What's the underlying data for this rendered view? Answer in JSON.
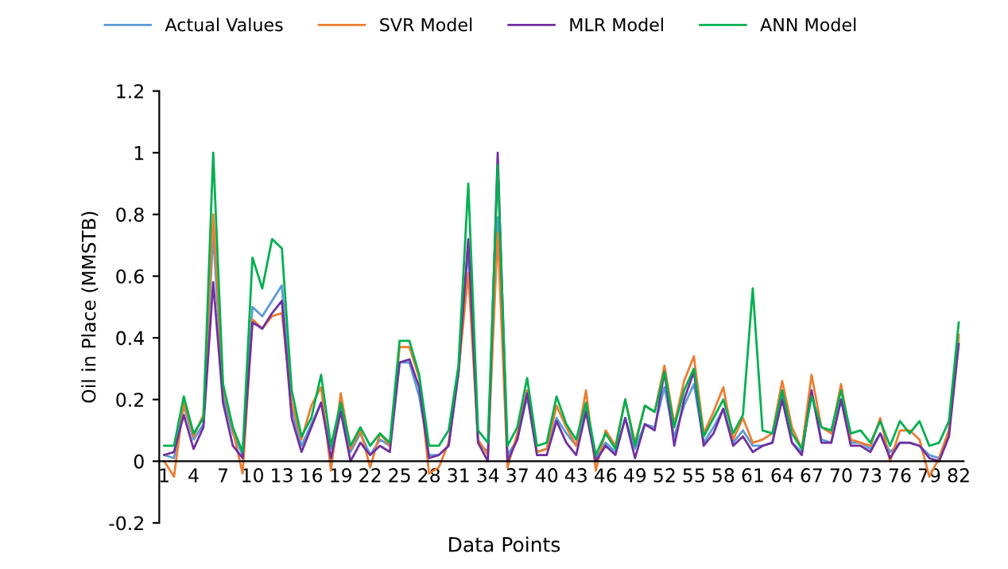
{
  "chart_data": {
    "type": "line",
    "xlabel": "Data Points",
    "ylabel": "Oil in Place (MMSTB)",
    "categories": [
      "1",
      null,
      null,
      "4",
      null,
      null,
      "7",
      null,
      null,
      "10",
      null,
      null,
      "13",
      null,
      null,
      "16",
      null,
      null,
      "19",
      null,
      null,
      "22",
      null,
      null,
      "25",
      null,
      null,
      "28",
      null,
      null,
      "31",
      null,
      null,
      "34",
      null,
      null,
      "37",
      null,
      null,
      "40",
      null,
      null,
      "43",
      null,
      null,
      "46",
      null,
      null,
      "49",
      null,
      null,
      "52",
      null,
      null,
      "55",
      null,
      null,
      "58",
      null,
      null,
      "61",
      null,
      null,
      "64",
      null,
      null,
      "67",
      null,
      null,
      "70",
      null,
      null,
      "73",
      null,
      null,
      "76",
      null,
      null,
      "79",
      null,
      null,
      "82"
    ],
    "ylim": [
      -0.2,
      1.2
    ],
    "yticks": [
      {
        "value": -0.2,
        "label": "-0.2"
      },
      0,
      0.2,
      0.4,
      0.6,
      0.8,
      1,
      1.2
    ],
    "grid": false,
    "legend": "top",
    "marker": "none",
    "line_style": "solid",
    "series": [
      {
        "name": "Actual Values",
        "color": "#5b9bd5",
        "values": [
          0.02,
          0.01,
          0.18,
          0.07,
          0.12,
          0.74,
          0.21,
          0.09,
          0.02,
          0.5,
          0.47,
          0.52,
          0.57,
          0.17,
          0.05,
          0.12,
          0.19,
          0.04,
          0.17,
          0.03,
          0.09,
          0.02,
          0.07,
          0.05,
          0.32,
          0.32,
          0.21,
          0.02,
          0.02,
          0.05,
          0.28,
          0.69,
          0.06,
          0.03,
          0.79,
          0.02,
          0.07,
          0.21,
          0.03,
          0.04,
          0.14,
          0.09,
          0.05,
          0.17,
          0.01,
          0.06,
          0.03,
          0.14,
          0.04,
          0.12,
          0.11,
          0.24,
          0.08,
          0.18,
          0.25,
          0.06,
          0.11,
          0.17,
          0.06,
          0.1,
          0.05,
          0.05,
          0.06,
          0.21,
          0.06,
          0.03,
          0.22,
          0.07,
          0.06,
          0.2,
          0.06,
          0.06,
          0.04,
          0.09,
          0.03,
          0.06,
          0.06,
          0.05,
          0.02,
          0.01,
          0.1,
          0.4
        ]
      },
      {
        "name": "SVR Model",
        "color": "#ed7d31",
        "values": [
          0.0,
          -0.05,
          0.19,
          0.08,
          0.15,
          0.8,
          0.24,
          0.1,
          -0.04,
          0.46,
          0.43,
          0.47,
          0.48,
          0.19,
          0.07,
          0.18,
          0.24,
          -0.03,
          0.22,
          0.04,
          0.1,
          -0.02,
          0.09,
          0.05,
          0.37,
          0.37,
          0.27,
          -0.04,
          -0.02,
          0.06,
          0.29,
          0.61,
          0.07,
          0.02,
          0.74,
          -0.02,
          0.09,
          0.23,
          0.03,
          0.04,
          0.18,
          0.11,
          0.05,
          0.23,
          -0.03,
          0.1,
          0.05,
          0.2,
          0.06,
          0.18,
          0.16,
          0.31,
          0.12,
          0.26,
          0.34,
          0.09,
          0.16,
          0.24,
          0.07,
          0.14,
          0.06,
          0.07,
          0.09,
          0.26,
          0.11,
          0.04,
          0.28,
          0.11,
          0.09,
          0.25,
          0.07,
          0.06,
          0.05,
          0.14,
          0.0,
          0.1,
          0.1,
          0.07,
          -0.05,
          0.01,
          0.1,
          0.41
        ]
      },
      {
        "name": "MLR Model",
        "color": "#7030a0",
        "values": [
          0.02,
          0.03,
          0.15,
          0.04,
          0.11,
          0.58,
          0.19,
          0.05,
          0.01,
          0.45,
          0.43,
          0.48,
          0.52,
          0.14,
          0.03,
          0.11,
          0.19,
          0.01,
          0.16,
          0.0,
          0.06,
          0.02,
          0.05,
          0.03,
          0.32,
          0.33,
          0.24,
          0.01,
          0.02,
          0.05,
          0.29,
          0.72,
          0.06,
          0.0,
          1.0,
          0.0,
          0.07,
          0.22,
          0.02,
          0.02,
          0.13,
          0.06,
          0.02,
          0.16,
          0.0,
          0.05,
          0.02,
          0.14,
          0.01,
          0.12,
          0.1,
          0.29,
          0.05,
          0.2,
          0.29,
          0.05,
          0.09,
          0.17,
          0.05,
          0.08,
          0.03,
          0.05,
          0.06,
          0.2,
          0.06,
          0.02,
          0.23,
          0.06,
          0.06,
          0.2,
          0.05,
          0.05,
          0.03,
          0.09,
          0.01,
          0.06,
          0.06,
          0.05,
          0.01,
          0.0,
          0.08,
          0.38
        ]
      },
      {
        "name": "ANN Model",
        "color": "#00b050",
        "values": [
          0.05,
          0.05,
          0.21,
          0.09,
          0.14,
          1.0,
          0.25,
          0.11,
          0.03,
          0.66,
          0.56,
          0.72,
          0.69,
          0.23,
          0.08,
          0.14,
          0.28,
          0.05,
          0.19,
          0.05,
          0.11,
          0.05,
          0.09,
          0.06,
          0.39,
          0.39,
          0.28,
          0.05,
          0.05,
          0.1,
          0.31,
          0.9,
          0.1,
          0.06,
          0.96,
          0.05,
          0.11,
          0.27,
          0.05,
          0.06,
          0.21,
          0.12,
          0.07,
          0.19,
          0.02,
          0.09,
          0.04,
          0.2,
          0.05,
          0.18,
          0.16,
          0.29,
          0.11,
          0.23,
          0.3,
          0.08,
          0.14,
          0.2,
          0.09,
          0.15,
          0.56,
          0.1,
          0.09,
          0.23,
          0.09,
          0.04,
          0.21,
          0.11,
          0.1,
          0.23,
          0.09,
          0.1,
          0.06,
          0.13,
          0.05,
          0.13,
          0.09,
          0.13,
          0.05,
          0.06,
          0.13,
          0.45
        ]
      }
    ]
  }
}
